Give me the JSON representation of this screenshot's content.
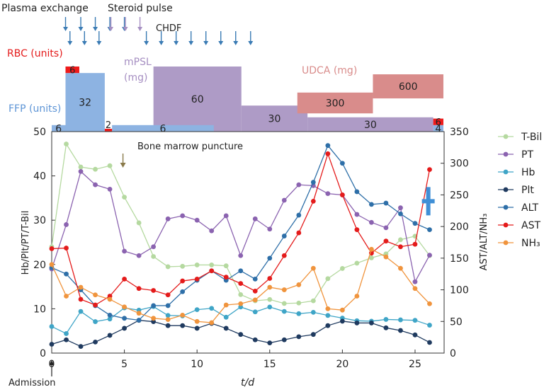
{
  "chart_data": {
    "type": "line",
    "xlabel": "t/d",
    "x_ticks": [
      0,
      5,
      10,
      15,
      20,
      25
    ],
    "xlim": [
      0,
      27
    ],
    "ylabel_left": "Hb/Plt/PT/T-Bil",
    "ylim_left": [
      0,
      50
    ],
    "y_ticks_left": [
      0,
      10,
      20,
      30,
      40,
      50
    ],
    "ylabel_right": "AST/ALT/NH₃",
    "ylim_right": [
      0,
      350
    ],
    "y_ticks_right": [
      0,
      50,
      100,
      150,
      200,
      250,
      300,
      350
    ],
    "admission_label": "Admission",
    "marrow_label": "Bone marrow puncture",
    "marrow_day": 5,
    "series": [
      {
        "name": "T-Bil",
        "axis": "left",
        "color": "#b5d9a0",
        "values": [
          24,
          47.2,
          42,
          41.5,
          42.3,
          35.2,
          29.4,
          21.8,
          19.5,
          19.6,
          19.9,
          19.9,
          19.7,
          13.2,
          11.8,
          12.1,
          11.2,
          11.3,
          11.8,
          16.8,
          19.1,
          20.3,
          21.5,
          22.4,
          25.6,
          26.4,
          22
        ]
      },
      {
        "name": "PT",
        "axis": "left",
        "color": "#8b63b0",
        "values": [
          19,
          29,
          41,
          38,
          37,
          23,
          22,
          24,
          30.3,
          31,
          30,
          27.6,
          31,
          22,
          30.3,
          28,
          34.5,
          38,
          37.8,
          36,
          35.7,
          31.3,
          29.5,
          28.3,
          32.8,
          16.1,
          22.1
        ]
      },
      {
        "name": "Hb",
        "axis": "left",
        "color": "#3fa5c7",
        "values": [
          6,
          4.4,
          9.4,
          7.1,
          7.7,
          10.2,
          9.7,
          10.5,
          8.5,
          8.4,
          9.8,
          10.1,
          8.1,
          10.4,
          9.3,
          10.4,
          9.4,
          8.9,
          9.2,
          8.5,
          7.9,
          7.3,
          7.2,
          7.6,
          7.5,
          7.4,
          6.3
        ]
      },
      {
        "name": "Plt",
        "axis": "left",
        "color": "#1f3a5f",
        "values": [
          2,
          3,
          1.5,
          2.5,
          4,
          5.6,
          7.4,
          7.1,
          6.2,
          6.2,
          5.6,
          6.7,
          5.6,
          4.2,
          3,
          2.3,
          3,
          3.7,
          4.2,
          6.2,
          7.2,
          6.8,
          6.8,
          5.7,
          5.1,
          4.1,
          2.4
        ]
      },
      {
        "name": "ALT",
        "axis": "right",
        "color": "#2e6fa8",
        "values": [
          135,
          125,
          100,
          75,
          60,
          55,
          52,
          75,
          75,
          97,
          115,
          130,
          115,
          130,
          117,
          150,
          185,
          218,
          270,
          328,
          300,
          255,
          235,
          237,
          220,
          205,
          195
        ]
      },
      {
        "name": "AST",
        "axis": "right",
        "color": "#e41b1b",
        "values": [
          165,
          166,
          85,
          76,
          90,
          117,
          102,
          99,
          92,
          114,
          117,
          130,
          120,
          110,
          98,
          118,
          154,
          190,
          240,
          315,
          250,
          195,
          158,
          177,
          168,
          172,
          290
        ]
      },
      {
        "name": "NH₃",
        "axis": "right",
        "color": "#f0943d",
        "values": [
          140,
          90,
          104,
          92,
          85,
          73,
          63,
          55,
          53,
          60,
          50,
          48,
          76,
          78,
          84,
          104,
          100,
          108,
          134,
          70,
          68,
          90,
          164,
          152,
          134,
          102,
          78
        ]
      }
    ],
    "plus_marker": {
      "day": 26.3,
      "value": 240,
      "color": "#3f8fd6"
    }
  },
  "timeline": {
    "plasma_label": "Plasma exchange",
    "steroid_label": "Steroid pulse",
    "chdf_label": "CHDF",
    "plasma_color": "#3a7bb4",
    "steroid_color": "#a68fc2",
    "plasma_days": [
      1,
      2,
      3,
      4,
      5
    ],
    "steroid_days": [
      4,
      5,
      6
    ],
    "chdf_days": [
      7,
      8,
      9,
      10,
      11,
      12,
      13,
      14
    ]
  },
  "treatments": {
    "rbc_label": "RBC (units)",
    "ffp_label": "FFP (units)",
    "mpsl_label_line1": "mPSL",
    "mpsl_label_line2": "(mg)",
    "udca_label": "UDCA (mg)",
    "rbc_color": "#ee1b1b",
    "ffp_color": "#8db3e2",
    "mpsl_color": "#ae9bc6",
    "udca_color": "#d98c8b",
    "ffp_blocks": [
      {
        "start": 0,
        "end": 0.95,
        "height": 1,
        "label": "6"
      },
      {
        "start": 0.95,
        "end": 3.65,
        "height": 9,
        "label": "32"
      },
      {
        "start": 4.15,
        "end": 11.15,
        "height": 1,
        "label": "6"
      },
      {
        "start": 26.25,
        "end": 26.95,
        "height": 1,
        "label": "4"
      }
    ],
    "rbc_blocks": [
      {
        "start": 0.95,
        "end": 1.9,
        "height": 1,
        "base": 9,
        "label": "6"
      },
      {
        "start": 3.65,
        "end": 4.15,
        "height": 0.3,
        "base": 0,
        "label": "2"
      },
      {
        "start": 26.25,
        "end": 26.95,
        "height": 1,
        "base": 1,
        "label": "6"
      }
    ],
    "mpsl_blocks": [
      {
        "start": 7,
        "end": 13.05,
        "height": 10,
        "label": "60"
      },
      {
        "start": 13.05,
        "end": 17.6,
        "height": 4,
        "label": "30"
      },
      {
        "start": 17.6,
        "end": 26.25,
        "height": 2.2,
        "label": "30"
      }
    ],
    "udca_blocks": [
      {
        "start": 16.9,
        "end": 22.1,
        "height": 3.2,
        "base": 2.8,
        "label": "300"
      },
      {
        "start": 22.1,
        "end": 26.95,
        "height": 3.7,
        "base": 5.1,
        "label": "600"
      }
    ]
  }
}
